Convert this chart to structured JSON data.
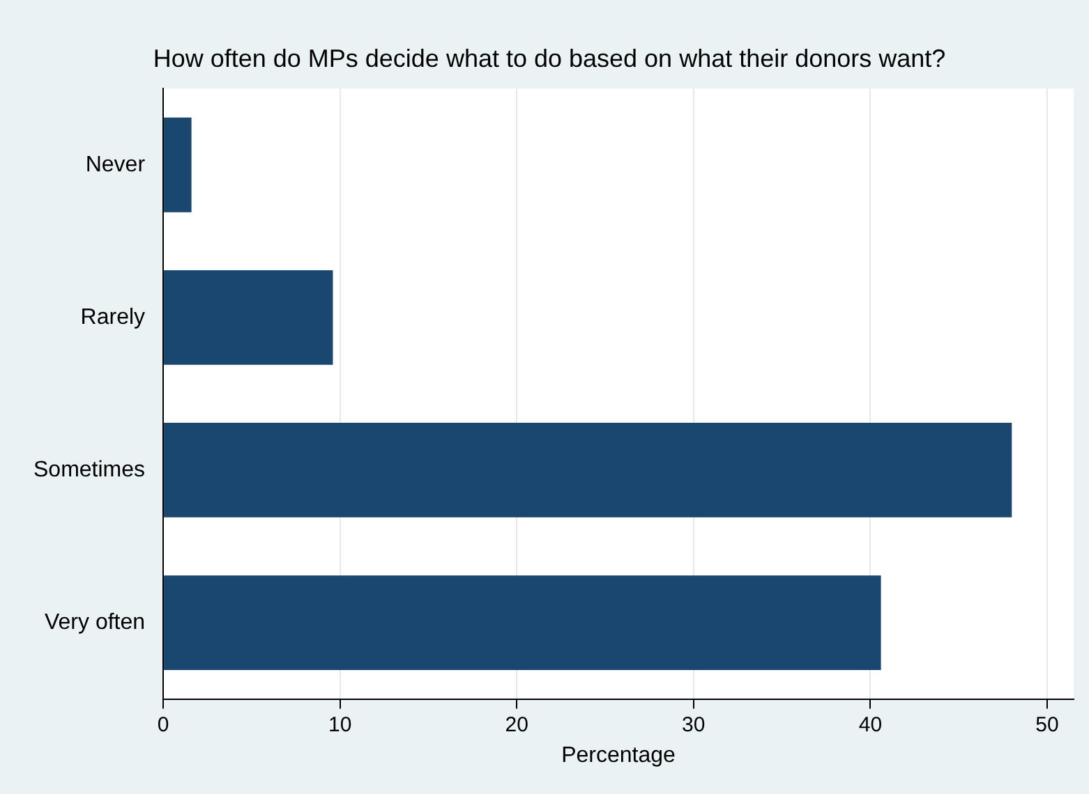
{
  "chart_data": {
    "type": "bar",
    "orientation": "horizontal",
    "title": "How often do MPs decide what to do based on what their donors want?",
    "xlabel": "Percentage",
    "categories": [
      "Never",
      "Rarely",
      "Sometimes",
      "Very often"
    ],
    "values": [
      1.6,
      9.6,
      48.0,
      40.6
    ],
    "color": "#1a476f",
    "xlim": [
      0,
      51.5
    ],
    "xticks": [
      0,
      10,
      20,
      30,
      40,
      50
    ],
    "grid": "x",
    "legend": false
  }
}
